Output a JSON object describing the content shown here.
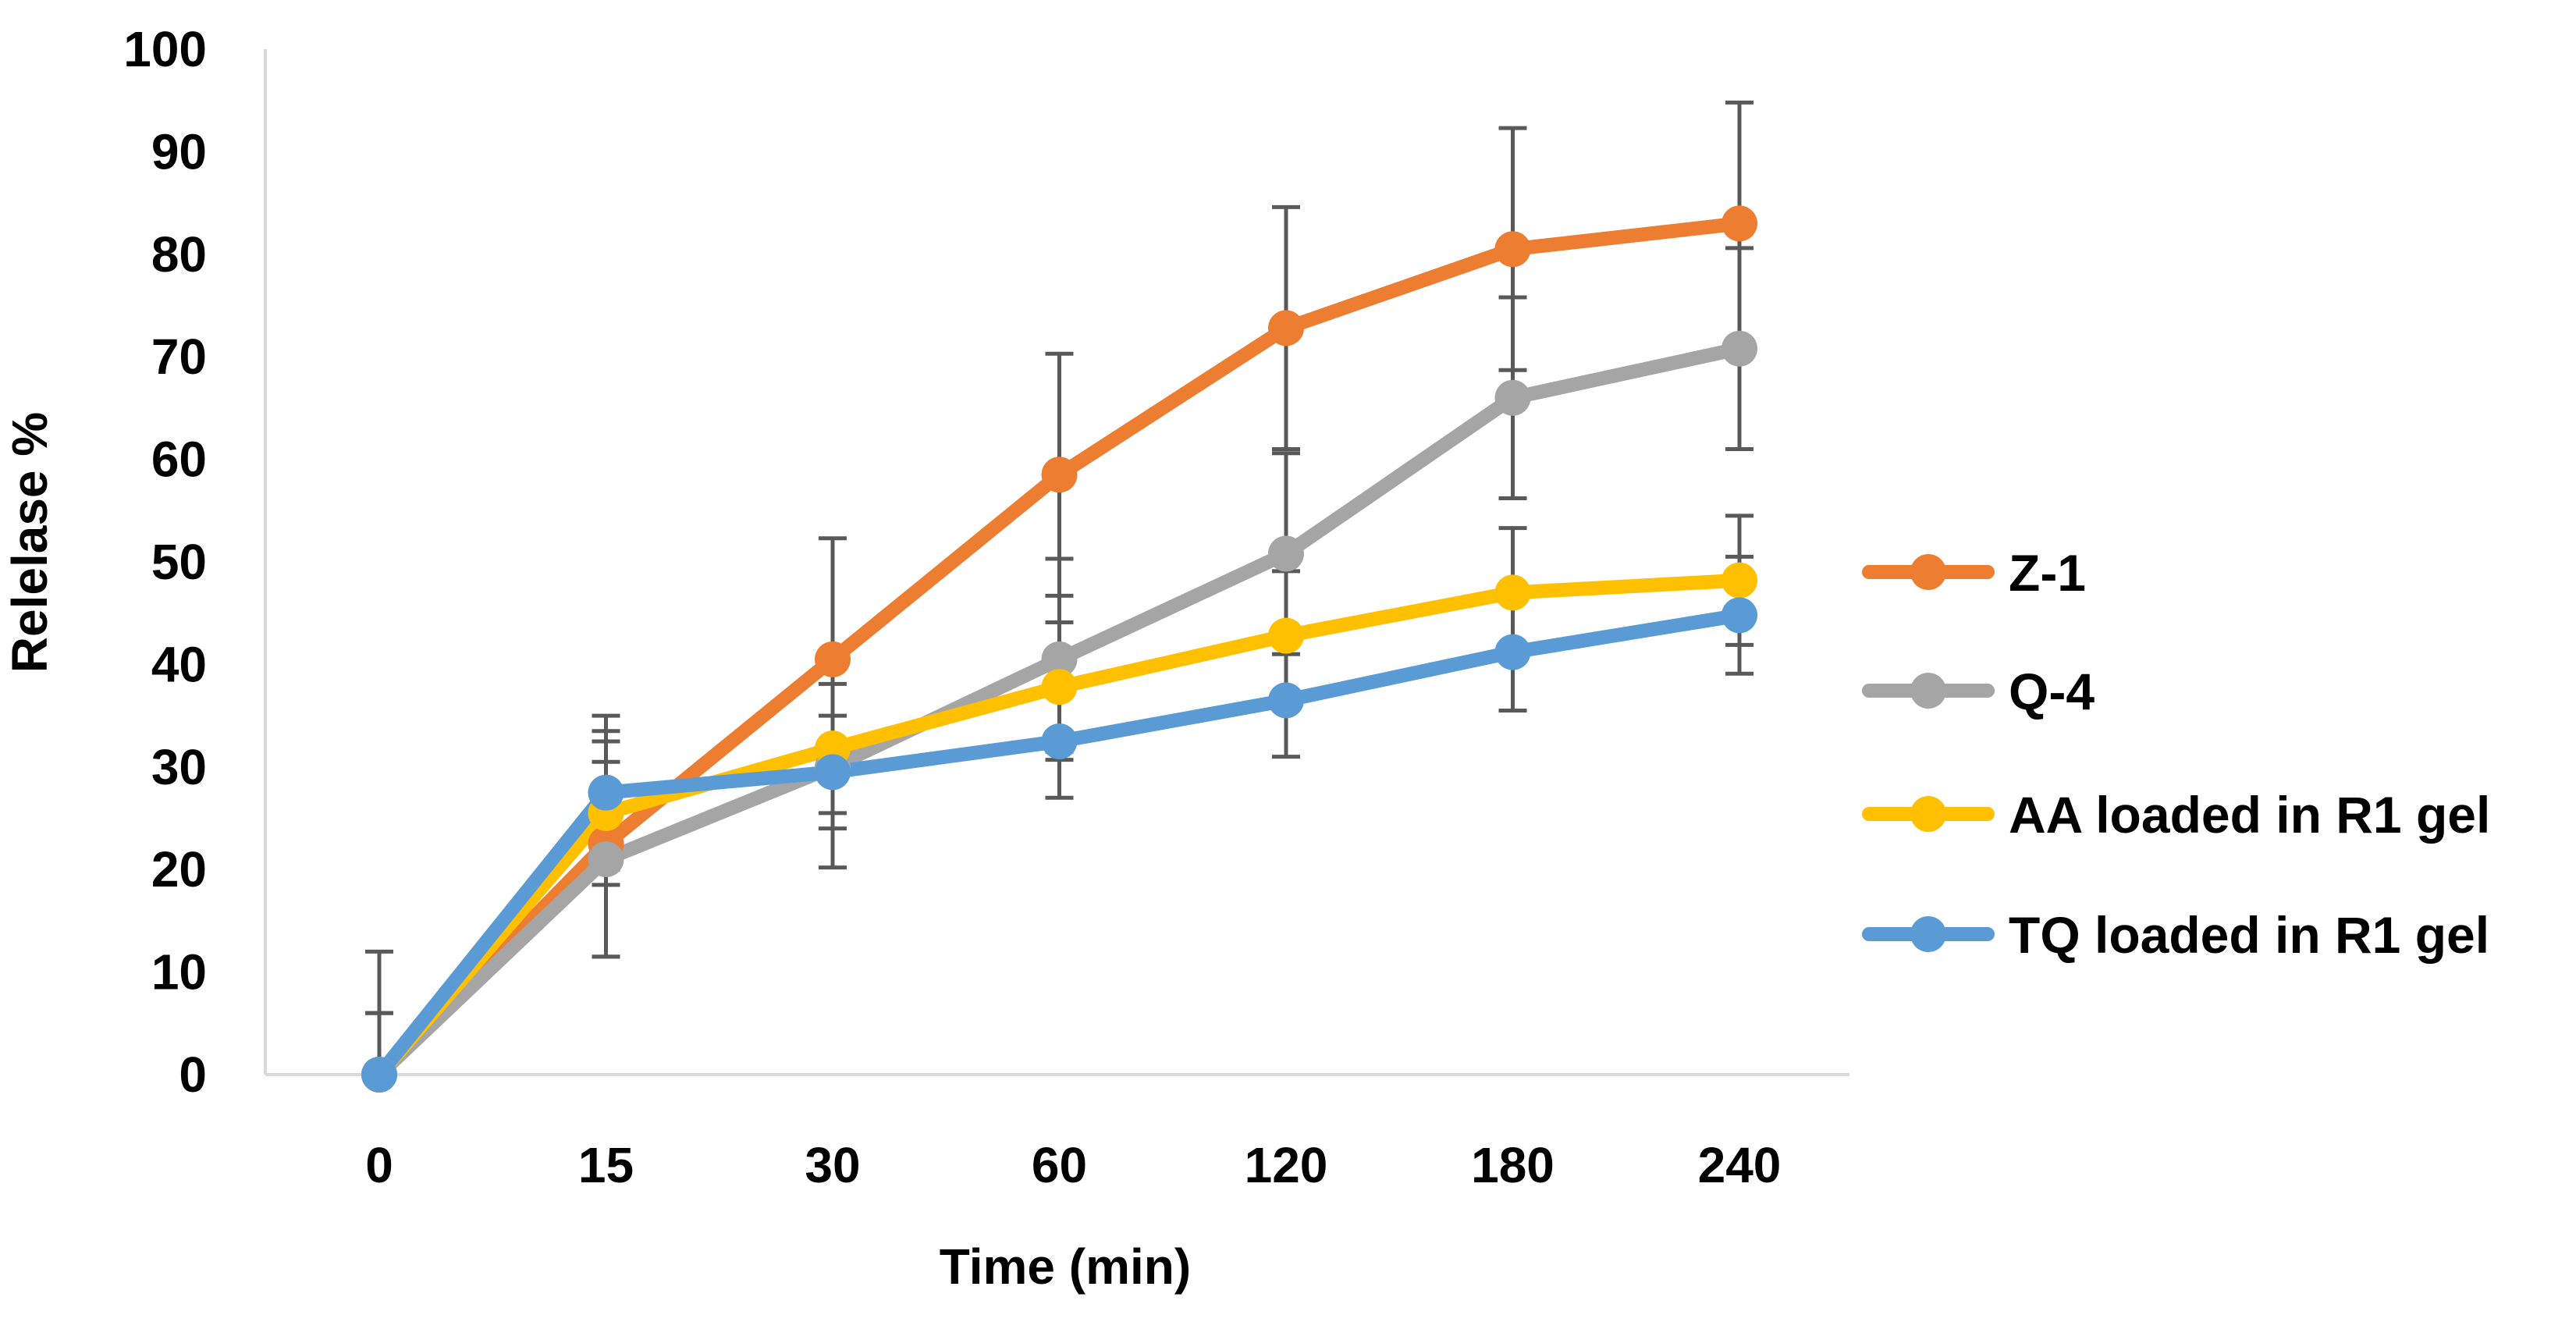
{
  "chart_data": {
    "type": "line",
    "title": "",
    "xlabel": "Time (min)",
    "ylabel": "Relelase %",
    "categories": [
      "0",
      "15",
      "30",
      "60",
      "120",
      "180",
      "240"
    ],
    "ylim": [
      0,
      100
    ],
    "yticks": [
      "0",
      "10",
      "20",
      "30",
      "40",
      "50",
      "60",
      "70",
      "80",
      "90",
      "100"
    ],
    "grid": false,
    "legend_position": "right",
    "series": [
      {
        "name": "Z-1",
        "color": "#ED7D31",
        "values": [
          0,
          22.5,
          40.5,
          58.5,
          72.8,
          80.5,
          83.0
        ],
        "errors": [
          6.0,
          11.0,
          11.8,
          11.8,
          11.8,
          11.8,
          11.8
        ]
      },
      {
        "name": "Q-4",
        "color": "#A5A5A5",
        "values": [
          0,
          21.0,
          30.0,
          40.5,
          50.8,
          66.0,
          70.8
        ],
        "errors": [
          6.0,
          9.5,
          9.8,
          9.8,
          9.8,
          9.8,
          9.8
        ]
      },
      {
        "name": "AA loaded in R1 gel",
        "color": "#FFC000",
        "values": [
          0,
          25.5,
          31.8,
          37.8,
          42.8,
          47.0,
          48.2
        ],
        "errors": [
          6.0,
          7.0,
          6.3,
          6.3,
          6.3,
          6.3,
          6.3
        ]
      },
      {
        "name": "TQ loaded in R1 gel",
        "color": "#5B9BD5",
        "values": [
          0,
          27.5,
          29.5,
          32.5,
          36.5,
          41.2,
          44.8
        ],
        "errors": [
          12.0,
          7.5,
          5.5,
          5.5,
          5.5,
          5.7,
          5.7
        ]
      }
    ],
    "error_bar_color": "#595959",
    "axis_color": "#D9D9D9"
  }
}
